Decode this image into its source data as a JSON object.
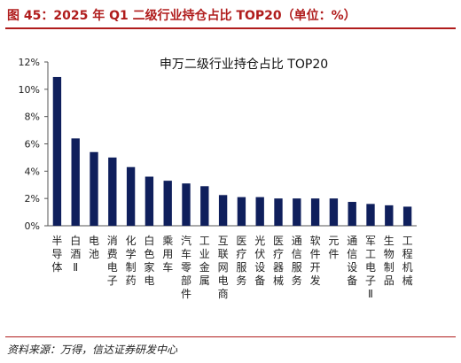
{
  "figure": {
    "title": "图 45：2025 年 Q1 二级行业持仓占比 TOP20（单位：%）",
    "source": "资料来源：万得，信达证券研发中心"
  },
  "colors": {
    "bar": "#0f1f5c",
    "accent": "#b01c1c",
    "axis": "#555555"
  },
  "chart_data": {
    "type": "bar",
    "title": "申万二级行业持仓占比 TOP20",
    "xlabel": "",
    "ylabel": "",
    "ylim": [
      0,
      12
    ],
    "ytick_labels": [
      "0%",
      "2%",
      "4%",
      "6%",
      "8%",
      "10%",
      "12%"
    ],
    "yticks": [
      0,
      2,
      4,
      6,
      8,
      10,
      12
    ],
    "grid": false,
    "categories": [
      "半导体",
      "白酒Ⅱ",
      "电池",
      "消费电子",
      "化学制药",
      "白色家电",
      "乘用车",
      "汽车零部件",
      "工业金属",
      "互联网电商",
      "医疗服务",
      "光伏设备",
      "医疗器械",
      "通信服务",
      "软件开发",
      "元件",
      "通信设备",
      "军工电子Ⅱ",
      "生物制品",
      "工程机械"
    ],
    "values": [
      10.9,
      6.4,
      5.4,
      5.0,
      4.3,
      3.6,
      3.3,
      3.1,
      2.9,
      2.25,
      2.1,
      2.1,
      2.0,
      2.0,
      2.0,
      2.0,
      1.75,
      1.6,
      1.5,
      1.4
    ]
  }
}
